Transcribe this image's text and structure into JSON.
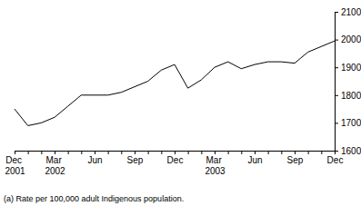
{
  "chart_data": {
    "type": "line",
    "categories": [
      "Dec 2001",
      null,
      null,
      "Mar 2002",
      null,
      null,
      "Jun",
      null,
      null,
      "Sep",
      null,
      null,
      "Dec",
      null,
      null,
      "Mar 2003",
      null,
      null,
      "Jun",
      null,
      null,
      "Sep",
      null,
      null,
      "Dec"
    ],
    "values": [
      1750,
      1690,
      1700,
      1720,
      1760,
      1800,
      1800,
      1800,
      1810,
      1830,
      1850,
      1890,
      1910,
      1825,
      1855,
      1900,
      1920,
      1895,
      1910,
      1920,
      1920,
      1915,
      1955,
      1975,
      1995
    ],
    "color": "#000000",
    "ylim": [
      1600,
      2100
    ],
    "yticks": [
      1600,
      1700,
      1800,
      1900,
      2000,
      2100
    ],
    "grid": false,
    "annotations": [
      "(a) Rate per 100,000 adult Indigenous population."
    ]
  }
}
